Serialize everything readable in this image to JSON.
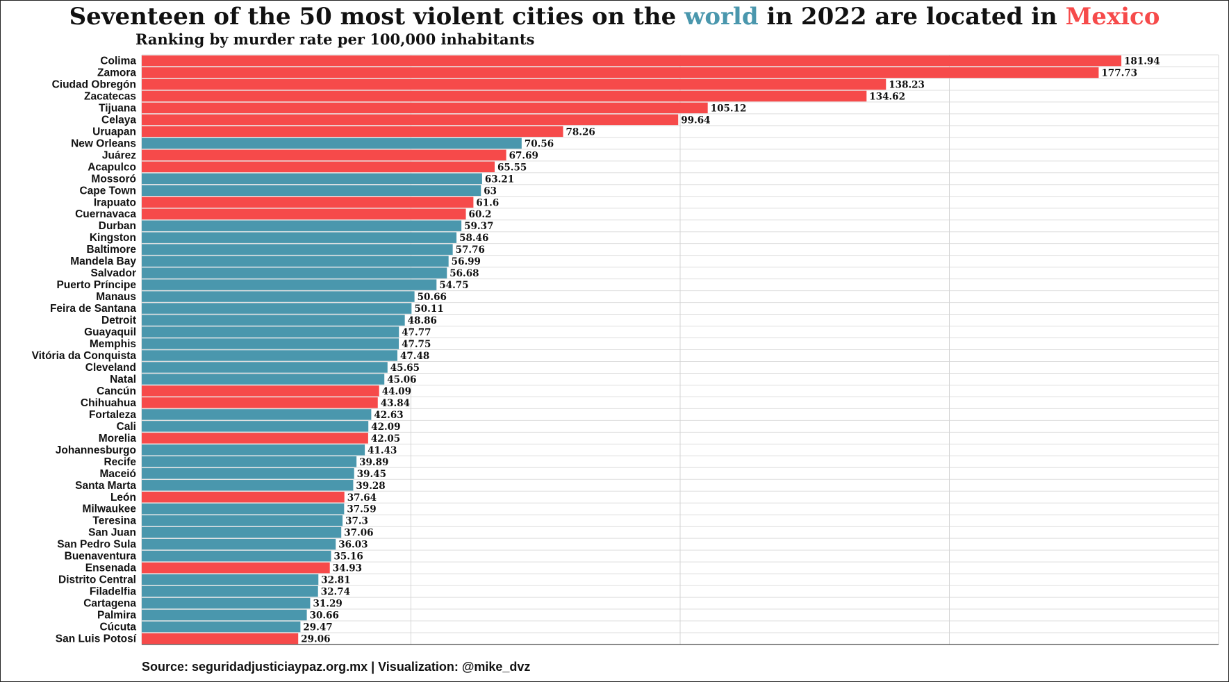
{
  "header": {
    "title_parts": [
      "Seventeen of the 50 most violent cities on the ",
      "world",
      " in 2022 are located in ",
      "Mexico"
    ],
    "subtitle": "Ranking by murder rate per 100,000 inhabitants"
  },
  "footer": {
    "source": "Source: seguridadjusticiaypaz.org.mx | Visualization: @mike_dvz"
  },
  "colors": {
    "mexico": "#f64a4a",
    "world": "#4a97ad"
  },
  "chart_data": {
    "type": "bar",
    "orientation": "horizontal",
    "title": "Seventeen of the 50 most violent cities on the world in 2022 are located in Mexico",
    "subtitle": "Ranking by murder rate per 100,000 inhabitants",
    "xlim": [
      0,
      200
    ],
    "grid": true,
    "categories": [
      "Colima",
      "Zamora",
      "Ciudad Obregón",
      "Zacatecas",
      "Tijuana",
      "Celaya",
      "Uruapan",
      "New Orleans",
      "Juárez",
      "Acapulco",
      "Mossoró",
      "Cape Town",
      "Irapuato",
      "Cuernavaca",
      "Durban",
      "Kingston",
      "Baltimore",
      "Mandela Bay",
      "Salvador",
      "Puerto Príncipe",
      "Manaus",
      "Feira de Santana",
      "Detroit",
      "Guayaquil",
      "Memphis",
      "Vitória da Conquista",
      "Cleveland",
      "Natal",
      "Cancún",
      "Chihuahua",
      "Fortaleza",
      "Cali",
      "Morelia",
      "Johannesburgo",
      "Recife",
      "Maceió",
      "Santa Marta",
      "León",
      "Milwaukee",
      "Teresina",
      "San Juan",
      "San Pedro Sula",
      "Buenaventura",
      "Ensenada",
      "Distrito Central",
      "Filadelfia",
      "Cartagena",
      "Palmira",
      "Cúcuta",
      "San Luis Potosí"
    ],
    "values": [
      181.94,
      177.73,
      138.23,
      134.62,
      105.12,
      99.64,
      78.26,
      70.56,
      67.69,
      65.55,
      63.21,
      63,
      61.6,
      60.2,
      59.37,
      58.46,
      57.76,
      56.99,
      56.68,
      54.75,
      50.66,
      50.11,
      48.86,
      47.77,
      47.75,
      47.48,
      45.65,
      45.06,
      44.09,
      43.84,
      42.63,
      42.09,
      42.05,
      41.43,
      39.89,
      39.45,
      39.28,
      37.64,
      37.59,
      37.3,
      37.06,
      36.03,
      35.16,
      34.93,
      32.81,
      32.74,
      31.29,
      30.66,
      29.47,
      29.06
    ],
    "labels": [
      "181.94",
      "177.73",
      "138.23",
      "134.62",
      "105.12",
      "99.64",
      "78.26",
      "70.56",
      "67.69",
      "65.55",
      "63.21",
      "63",
      "61.6",
      "60.2",
      "59.37",
      "58.46",
      "57.76",
      "56.99",
      "56.68",
      "54.75",
      "50.66",
      "50.11",
      "48.86",
      "47.77",
      "47.75",
      "47.48",
      "45.65",
      "45.06",
      "44.09",
      "43.84",
      "42.63",
      "42.09",
      "42.05",
      "41.43",
      "39.89",
      "39.45",
      "39.28",
      "37.64",
      "37.59",
      "37.3",
      "37.06",
      "36.03",
      "35.16",
      "34.93",
      "32.81",
      "32.74",
      "31.29",
      "30.66",
      "29.47",
      "29.06"
    ],
    "is_mexico": [
      true,
      true,
      true,
      true,
      true,
      true,
      true,
      false,
      true,
      true,
      false,
      false,
      true,
      true,
      false,
      false,
      false,
      false,
      false,
      false,
      false,
      false,
      false,
      false,
      false,
      false,
      false,
      false,
      true,
      true,
      false,
      false,
      true,
      false,
      false,
      false,
      false,
      true,
      false,
      false,
      false,
      false,
      false,
      true,
      false,
      false,
      false,
      false,
      false,
      true
    ]
  }
}
